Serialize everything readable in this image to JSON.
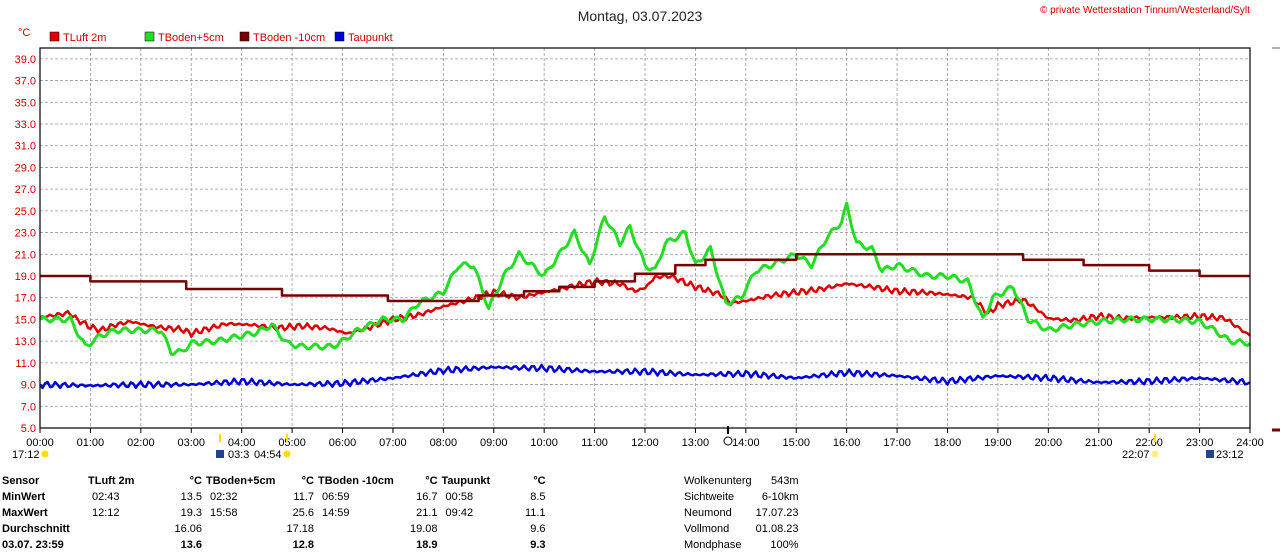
{
  "header": {
    "title": "Montag, 03.07.2023",
    "credit": "© private Wetterstation Tinnum/Westerland/Sylt"
  },
  "chart_data": {
    "type": "line",
    "title": "Montag, 03.07.2023",
    "ylabel": "°C",
    "ylim": [
      5.0,
      40.0
    ],
    "yticks": [
      "39.0",
      "37.0",
      "35.0",
      "33.0",
      "31.0",
      "29.0",
      "27.0",
      "25.0",
      "23.0",
      "21.0",
      "19.0",
      "17.0",
      "15.0",
      "13.0",
      "11.0",
      "9.0",
      "7.0",
      "5.0"
    ],
    "xlim": [
      0,
      24
    ],
    "xticks": [
      "00:00",
      "01:00",
      "02:00",
      "03:00",
      "04:00",
      "05:00",
      "06:00",
      "07:00",
      "08:00",
      "09:00",
      "10:00",
      "11:00",
      "12:00",
      "13:00",
      "14:00",
      "15:00",
      "16:00",
      "17:00",
      "18:00",
      "19:00",
      "20:00",
      "21:00",
      "22:00",
      "23:00",
      "24:00"
    ],
    "grid": true,
    "legend_position": "top-left",
    "series": [
      {
        "name": "TLuft 2m",
        "color": "#dd0000",
        "x": [
          0,
          0.6,
          0.7,
          1,
          1.2,
          1.5,
          1.8,
          2.2,
          2.5,
          2.8,
          3.0,
          3.3,
          3.7,
          4.2,
          4.7,
          5.2,
          5.7,
          6.1,
          6.5,
          7.0,
          7.5,
          8.0,
          8.5,
          9.0,
          9.5,
          10.0,
          10.5,
          11.0,
          11.5,
          11.8,
          12.0,
          12.2,
          12.5,
          13.0,
          13.5,
          13.7,
          14.0,
          14.5,
          15.0,
          15.5,
          16.0,
          16.5,
          17.0,
          17.5,
          18.0,
          18.5,
          18.8,
          19.0,
          19.5,
          19.7,
          20.0,
          20.5,
          21.0,
          21.5,
          22.0,
          22.5,
          23.0,
          23.5,
          24.0
        ],
        "y": [
          15.2,
          15.6,
          15.1,
          14.3,
          14.0,
          14.5,
          14.8,
          14.4,
          14.2,
          14.1,
          13.7,
          14.1,
          14.6,
          14.5,
          14.2,
          14.4,
          14.2,
          13.7,
          14.2,
          15.0,
          15.4,
          16.2,
          16.8,
          17.5,
          17.0,
          17.5,
          18.0,
          18.5,
          18.3,
          17.6,
          17.9,
          18.9,
          19.0,
          18.0,
          17.3,
          16.5,
          16.7,
          17.2,
          17.5,
          17.8,
          18.3,
          18.0,
          17.6,
          17.5,
          17.3,
          17.0,
          15.5,
          16.3,
          16.8,
          16.2,
          15.1,
          14.9,
          15.3,
          15.1,
          15.2,
          15.2,
          15.3,
          15.1,
          13.5
        ]
      },
      {
        "name": "TBoden+5cm",
        "color": "#22dd22",
        "x": [
          0,
          0.6,
          0.9,
          1.2,
          1.5,
          2.0,
          2.4,
          2.6,
          2.8,
          3.0,
          3.5,
          4.0,
          4.3,
          4.6,
          4.9,
          5.2,
          5.8,
          6.0,
          6.3,
          6.8,
          7.2,
          7.5,
          8.0,
          8.3,
          8.6,
          8.9,
          9.2,
          9.5,
          10.0,
          10.3,
          10.6,
          10.9,
          11.2,
          11.5,
          11.7,
          12.0,
          12.2,
          12.4,
          12.8,
          13.0,
          13.3,
          13.6,
          13.9,
          14.2,
          14.5,
          15.0,
          15.3,
          15.6,
          15.9,
          16.0,
          16.2,
          16.5,
          16.7,
          17.0,
          17.3,
          17.6,
          18.0,
          18.4,
          18.7,
          18.9,
          19.1,
          19.3,
          19.6,
          19.8,
          20.0,
          20.5,
          21.0,
          21.5,
          22.0,
          22.5,
          23.0,
          23.3,
          23.6,
          24.0
        ],
        "y": [
          15.0,
          15.0,
          12.5,
          13.5,
          14.0,
          14.0,
          14.0,
          12.0,
          12.0,
          12.8,
          13.0,
          13.5,
          13.8,
          14.5,
          12.8,
          12.5,
          12.5,
          13.0,
          14.0,
          15.0,
          15.0,
          16.5,
          17.5,
          20.0,
          20.0,
          16.0,
          19.0,
          21.0,
          19.0,
          21.0,
          23.0,
          20.0,
          24.5,
          22.0,
          23.5,
          20.0,
          19.5,
          22.0,
          23.0,
          20.0,
          21.5,
          16.5,
          17.0,
          19.5,
          20.0,
          21.0,
          20.0,
          22.5,
          24.0,
          25.5,
          22.0,
          21.5,
          19.5,
          20.0,
          19.5,
          19.0,
          19.0,
          18.5,
          15.0,
          17.0,
          17.5,
          18.0,
          15.0,
          14.5,
          14.0,
          14.5,
          14.8,
          15.0,
          15.0,
          15.0,
          14.8,
          14.0,
          13.0,
          12.8
        ]
      },
      {
        "name": "TBoden -10cm",
        "color": "#770000",
        "x": [
          0,
          1.0,
          1.0,
          2.9,
          2.9,
          4.8,
          4.8,
          6.9,
          6.9,
          8.7,
          8.7,
          9.6,
          9.6,
          10.3,
          10.3,
          11.0,
          11.0,
          11.8,
          11.8,
          12.6,
          12.6,
          13.2,
          13.2,
          15.0,
          15.0,
          19.5,
          19.5,
          20.7,
          20.7,
          22.0,
          22.0,
          23.0,
          23.0,
          24.0
        ],
        "y": [
          19.0,
          19.0,
          18.5,
          18.5,
          17.8,
          17.8,
          17.2,
          17.2,
          16.7,
          16.7,
          17.2,
          17.2,
          17.6,
          17.6,
          18.0,
          18.0,
          18.5,
          18.5,
          19.2,
          19.2,
          20.0,
          20.0,
          20.5,
          20.5,
          21.0,
          21.0,
          20.5,
          20.5,
          20.0,
          20.0,
          19.5,
          19.5,
          19.0,
          19.0
        ]
      },
      {
        "name": "Taupunkt",
        "color": "#0000dd",
        "x": [
          0,
          1.0,
          2.0,
          3.0,
          4.0,
          5.0,
          6.0,
          7.0,
          8.0,
          9.0,
          10.0,
          11.0,
          12.0,
          13.0,
          14.0,
          15.0,
          16.0,
          17.0,
          18.0,
          19.0,
          20.0,
          21.0,
          22.0,
          23.0,
          24.0
        ],
        "y": [
          9.0,
          8.9,
          9.0,
          9.0,
          9.3,
          9.0,
          9.1,
          9.6,
          10.3,
          10.6,
          10.5,
          10.2,
          10.2,
          9.9,
          10.0,
          9.6,
          10.1,
          9.8,
          9.3,
          9.8,
          9.6,
          9.2,
          9.3,
          9.6,
          9.2
        ]
      }
    ],
    "sun_moon_marks": [
      "17:12",
      "03:3",
      "04:54",
      "22:07",
      "23:12"
    ]
  },
  "stats": {
    "headers": [
      "Sensor",
      "TLuft 2m",
      "°C",
      "TBoden+5cm",
      "°C",
      "TBoden -10cm",
      "°C",
      "Taupunkt",
      "°C"
    ],
    "rows": [
      {
        "label": "MinWert",
        "c1": "02:43",
        "v1": "13.5",
        "c2": "02:32",
        "v2": "11.7",
        "c3": "06:59",
        "v3": "16.7",
        "c4": "00:58",
        "v4": "8.5"
      },
      {
        "label": "MaxWert",
        "c1": "12:12",
        "v1": "19.3",
        "c2": "15:58",
        "v2": "25.6",
        "c3": "14:59",
        "v3": "21.1",
        "c4": "09:42",
        "v4": "11.1"
      },
      {
        "label": "Durchschnitt",
        "c1": "",
        "v1": "16.06",
        "c2": "",
        "v2": "17.18",
        "c3": "",
        "v3": "19.08",
        "c4": "",
        "v4": "9.6"
      },
      {
        "label": "03.07. 23:59",
        "c1": "",
        "v1": "13.6",
        "c2": "",
        "v2": "12.8",
        "c3": "",
        "v3": "18.9",
        "c4": "",
        "v4": "9.3"
      }
    ]
  },
  "info": [
    {
      "k": "Wolkenunterg",
      "v": "543m"
    },
    {
      "k": "Sichtweite",
      "v": "6-10km"
    },
    {
      "k": "Neumond",
      "v": "17.07.23"
    },
    {
      "k": "Vollmond",
      "v": "01.08.23"
    },
    {
      "k": "Mondphase",
      "v": "100%"
    }
  ]
}
